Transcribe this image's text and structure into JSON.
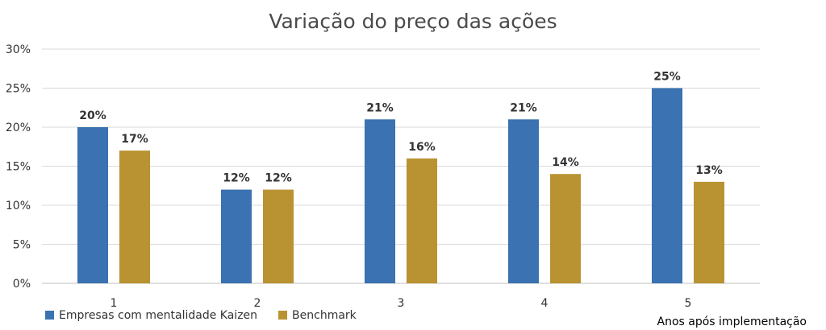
{
  "chart_data": {
    "type": "bar",
    "title": "Variação do preço das ações",
    "xlabel": "Anos após implementação",
    "ylabel": "",
    "categories": [
      "1",
      "2",
      "3",
      "4",
      "5"
    ],
    "series": [
      {
        "name": "Empresas com mentalidade Kaizen",
        "color": "#3b72b1",
        "values": [
          20,
          12,
          21,
          21,
          25
        ],
        "labels": [
          "20%",
          "12%",
          "21%",
          "21%",
          "25%"
        ]
      },
      {
        "name": "Benchmark",
        "color": "#b99232",
        "values": [
          17,
          12,
          16,
          14,
          13
        ],
        "labels": [
          "17%",
          "12%",
          "16%",
          "14%",
          "13%"
        ]
      }
    ],
    "ylim": [
      0,
      30
    ],
    "yticks": [
      0,
      5,
      10,
      15,
      20,
      25,
      30
    ],
    "ytick_labels": [
      "0%",
      "5%",
      "10%",
      "15%",
      "20%",
      "25%",
      "30%"
    ],
    "grid": true,
    "legend_position": "bottom-left"
  }
}
